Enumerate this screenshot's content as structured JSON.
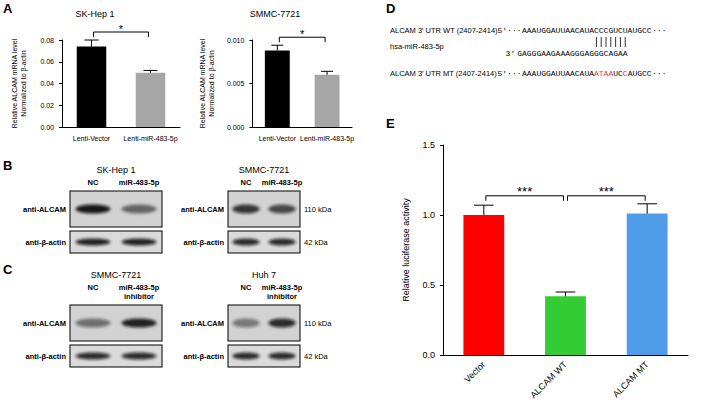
{
  "panel_letters": [
    "A",
    "B",
    "C",
    "D",
    "E"
  ],
  "chart_data": [
    {
      "type": "bar",
      "title": "SK-Hep 1",
      "categories": [
        "Lenti-Vector",
        "Lenti-miR-483-5p"
      ],
      "values": [
        0.074,
        0.05
      ],
      "errors": [
        0.006,
        0.002
      ],
      "colors": [
        "#000000",
        "#a6a6a6"
      ],
      "ylabel": [
        "Relative ALCAM mRNA level",
        "Normalized to β-actin"
      ],
      "ylim": [
        0,
        0.08
      ],
      "yticks": [
        {
          "value": 0,
          "label": "0.00"
        },
        0.02,
        0.04,
        0.06,
        0.08
      ],
      "grid": false,
      "significance": [
        {
          "from": 0,
          "to": 1,
          "label": "*"
        }
      ]
    },
    {
      "type": "bar",
      "title": "SMMC-7721",
      "categories": [
        "Lenti-Vector",
        "Lenti-miR-483-5p"
      ],
      "values": [
        0.0088,
        0.006
      ],
      "errors": [
        0.0006,
        0.0004
      ],
      "colors": [
        "#000000",
        "#a6a6a6"
      ],
      "ylabel": [
        "Relative ALCAM mRNA level",
        "Normalized to β-actin"
      ],
      "ylim": [
        0,
        0.01
      ],
      "yticks": [
        {
          "value": 0,
          "label": "0.000"
        },
        0.005,
        {
          "value": 0.01,
          "label": "0.010"
        }
      ],
      "grid": false,
      "significance": [
        {
          "from": 0,
          "to": 1,
          "label": "*"
        }
      ]
    },
    {
      "type": "bar",
      "categories": [
        "Vector",
        "ALCAM WT",
        "ALCAM MT"
      ],
      "values": [
        1.0,
        0.42,
        1.01
      ],
      "errors": [
        0.07,
        0.03,
        0.07
      ],
      "colors": [
        "#ff0000",
        "#33cc33",
        "#4f9de8"
      ],
      "ylabel": [
        "Relative luciferase activity"
      ],
      "ylim": [
        0,
        1.5
      ],
      "yticks": [
        {
          "value": 0,
          "label": "0.0"
        },
        0.5,
        {
          "value": 1,
          "label": "1.0"
        },
        1.5
      ],
      "grid": false,
      "significance": [
        {
          "from": 0,
          "to": 1,
          "label": "***"
        },
        {
          "from": 1,
          "to": 2,
          "label": "***"
        }
      ]
    }
  ],
  "western_blots": [
    {
      "title": "SK-Hep 1",
      "lanes": [
        [
          "NC"
        ],
        [
          "miR-483-5p"
        ]
      ],
      "rows": [
        "anti-ALCAM",
        "anti-β-actin"
      ],
      "sizes": []
    },
    {
      "title": "SMMC-7721",
      "lanes": [
        [
          "NC"
        ],
        [
          "miR-483-5p"
        ]
      ],
      "rows": [
        "anti-ALCAM",
        "anti-β-actin"
      ],
      "sizes": [
        "110 kDa",
        "42 kDa"
      ]
    },
    {
      "title": "SMMC-7721",
      "lanes": [
        [
          "NC"
        ],
        [
          "miR-483-5p",
          "inhibitor"
        ]
      ],
      "rows": [
        "anti-ALCAM",
        "anti-β-actin"
      ],
      "sizes": []
    },
    {
      "title": "Huh 7",
      "lanes": [
        [
          "NC"
        ],
        [
          "miR-483-5p",
          "inhibitor"
        ]
      ],
      "rows": [
        "anti-ALCAM",
        "anti-β-actin"
      ],
      "sizes": [
        "110 kDa",
        "42 kDa"
      ]
    }
  ],
  "sequence_diagram": {
    "wt_label": "ALCAM 3′ UTR WT (2407-2414)",
    "mt_label": "ALCAM 3′ UTR MT (2407-2414)",
    "prefix": "5′···",
    "suffix": "···",
    "wt_segments": [
      {
        "text": "AAAUGGAUUAACAUACCCGUCUAUGCC"
      }
    ],
    "mt_segments": [
      {
        "text": "AAAUGGAUUAACAUA"
      },
      {
        "text": "ATAA",
        "color": "#e8383d"
      },
      {
        "text": "UC"
      },
      {
        "text": "C",
        "color": "#e8383d"
      },
      {
        "text": "AUGCC"
      }
    ],
    "mirna_label": "hsa-miR-483-5p",
    "mirna_end": "3′",
    "mirna": "GAGGGAAGAAAGGGAGGGCAGAA",
    "pair_start": 15,
    "pair_count": 7
  }
}
